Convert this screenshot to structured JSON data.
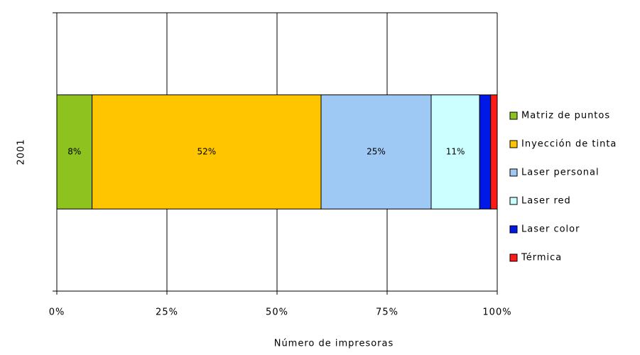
{
  "chart_data": {
    "type": "stacked-bar-horizontal",
    "xlabel": "Número de impresoras",
    "categories": [
      "2001"
    ],
    "series": [
      {
        "name": "Matriz de puntos",
        "color": "#8dc21f",
        "values": [
          8
        ],
        "value_labels": [
          "8%"
        ]
      },
      {
        "name": "Inyección de tinta",
        "color": "#ffc600",
        "values": [
          52
        ],
        "value_labels": [
          "52%"
        ]
      },
      {
        "name": "Laser personal",
        "color": "#9ec9f5",
        "values": [
          25
        ],
        "value_labels": [
          "25%"
        ]
      },
      {
        "name": "Laser red",
        "color": "#ccffff",
        "values": [
          11
        ],
        "value_labels": [
          "11%"
        ]
      },
      {
        "name": "Laser color",
        "color": "#0019e6",
        "values": [
          2.5
        ]
      },
      {
        "name": "Térmica",
        "color": "#ff1a1a",
        "values": [
          1.5
        ]
      }
    ],
    "xlim": [
      0,
      100
    ],
    "xticks": [
      {
        "value": 0,
        "label": "0%"
      },
      {
        "value": 25,
        "label": "25%"
      },
      {
        "value": 50,
        "label": "50%"
      },
      {
        "value": 75,
        "label": "75%"
      },
      {
        "value": 100,
        "label": "100%"
      }
    ],
    "grid": true,
    "legend": "right"
  }
}
